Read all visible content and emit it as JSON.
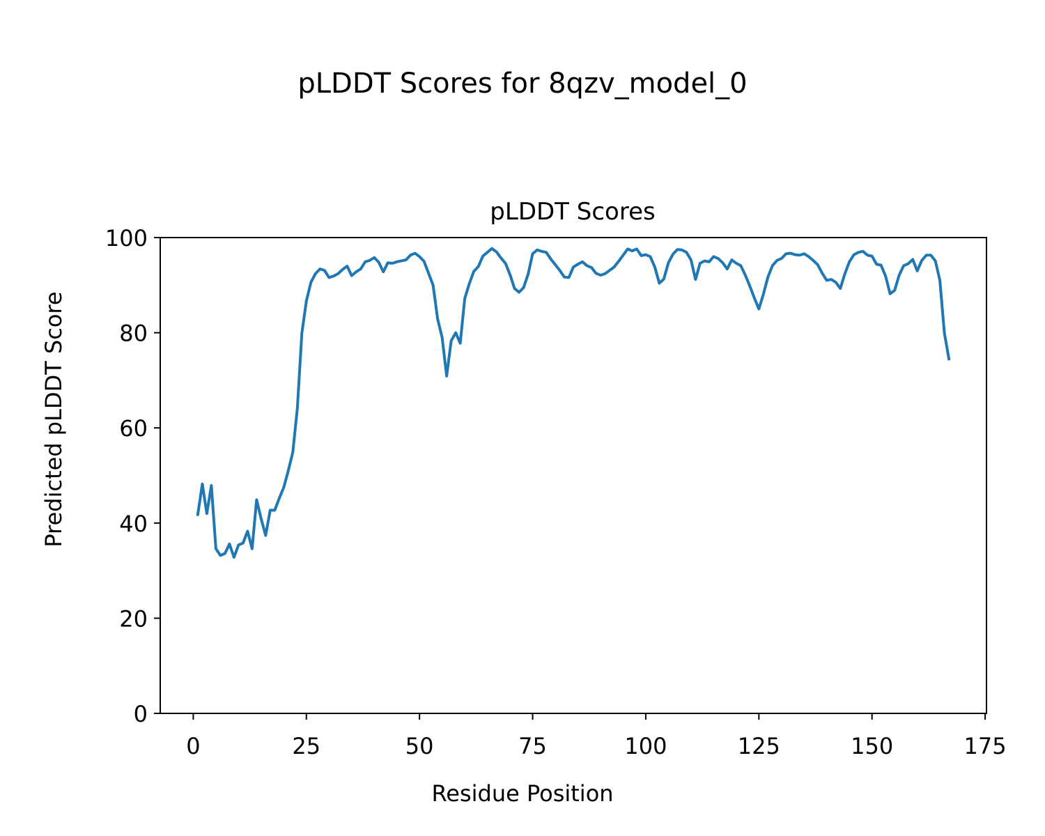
{
  "figure": {
    "suptitle": "pLDDT Scores for 8qzv_model_0"
  },
  "chart_data": {
    "type": "line",
    "title": "pLDDT Scores",
    "xlabel": "Residue Position",
    "ylabel": "Predicted pLDDT Score",
    "xlim": [
      -7.3,
      175.3
    ],
    "ylim": [
      0,
      100
    ],
    "xticks": [
      0,
      25,
      50,
      75,
      100,
      125,
      150,
      175
    ],
    "yticks": [
      0,
      20,
      40,
      60,
      80,
      100
    ],
    "grid": false,
    "legend": "none",
    "colors": {
      "line": "#1f77b4"
    },
    "series": [
      {
        "x": [
          1,
          2,
          3,
          4,
          5,
          6,
          7,
          8,
          9,
          10,
          11,
          12,
          13,
          14,
          15,
          16,
          17,
          18,
          19,
          20,
          21,
          22,
          23,
          24,
          25,
          26,
          27,
          28,
          29,
          30,
          31,
          32,
          33,
          34,
          35,
          36,
          37,
          38,
          39,
          40,
          41,
          42,
          43,
          44,
          45,
          46,
          47,
          48,
          49,
          50,
          51,
          52,
          53,
          54,
          55,
          56,
          57,
          58,
          59,
          60,
          61,
          62,
          63,
          64,
          65,
          66,
          67,
          68,
          69,
          70,
          71,
          72,
          73,
          74,
          75,
          76,
          77,
          78,
          79,
          80,
          81,
          82,
          83,
          84,
          85,
          86,
          87,
          88,
          89,
          90,
          91,
          92,
          93,
          94,
          95,
          96,
          97,
          98,
          99,
          100,
          101,
          102,
          103,
          104,
          105,
          106,
          107,
          108,
          109,
          110,
          111,
          112,
          113,
          114,
          115,
          116,
          117,
          118,
          119,
          120,
          121,
          122,
          123,
          124,
          125,
          126,
          127,
          128,
          129,
          130,
          131,
          132,
          133,
          134,
          135,
          136,
          137,
          138,
          139,
          140,
          141,
          142,
          143,
          144,
          145,
          146,
          147,
          148,
          149,
          150,
          151,
          152,
          153,
          154,
          155,
          156,
          157,
          158,
          159,
          160,
          161,
          162,
          163,
          164,
          165,
          166,
          167
        ],
        "values": [
          41.8,
          48.2,
          42.0,
          47.9,
          34.6,
          33.2,
          33.6,
          35.6,
          32.8,
          35.4,
          35.8,
          38.3,
          34.6,
          44.9,
          40.9,
          37.4,
          42.7,
          42.7,
          45.2,
          47.5,
          51.0,
          54.9,
          64.1,
          79.9,
          86.7,
          90.6,
          92.4,
          93.4,
          93.1,
          91.6,
          91.9,
          92.4,
          93.3,
          94.0,
          92.0,
          92.8,
          93.4,
          94.9,
          95.2,
          95.8,
          94.8,
          92.8,
          94.7,
          94.6,
          94.9,
          95.1,
          95.3,
          96.3,
          96.7,
          96.0,
          95.0,
          92.5,
          90.0,
          82.9,
          79.0,
          70.9,
          78.3,
          80.0,
          77.8,
          87.2,
          90.3,
          92.9,
          93.9,
          96.1,
          96.9,
          97.7,
          97.0,
          95.7,
          94.6,
          92.2,
          89.3,
          88.5,
          89.5,
          92.3,
          96.6,
          97.4,
          97.1,
          96.9,
          95.5,
          94.3,
          93.1,
          91.7,
          91.6,
          93.8,
          94.4,
          94.9,
          94.1,
          93.7,
          92.5,
          92.1,
          92.4,
          93.1,
          93.8,
          95.0,
          96.3,
          97.6,
          97.2,
          97.6,
          96.2,
          96.4,
          96.0,
          93.8,
          90.4,
          91.3,
          94.7,
          96.5,
          97.5,
          97.4,
          96.9,
          95.3,
          91.2,
          94.6,
          95.1,
          94.9,
          96.0,
          95.6,
          94.7,
          93.4,
          95.3,
          94.6,
          94.1,
          92.1,
          89.8,
          87.3,
          85.0,
          88.1,
          91.7,
          94.1,
          95.2,
          95.6,
          96.6,
          96.7,
          96.4,
          96.3,
          96.6,
          96.0,
          95.2,
          94.3,
          92.5,
          91.0,
          91.2,
          90.6,
          89.3,
          92.4,
          94.9,
          96.4,
          96.9,
          97.1,
          96.3,
          96.1,
          94.4,
          94.2,
          91.9,
          88.2,
          88.9,
          92.1,
          94.1,
          94.5,
          95.4,
          93.0,
          95.2,
          96.3,
          96.3,
          95.1,
          91.0,
          79.9,
          74.5
        ]
      }
    ]
  }
}
